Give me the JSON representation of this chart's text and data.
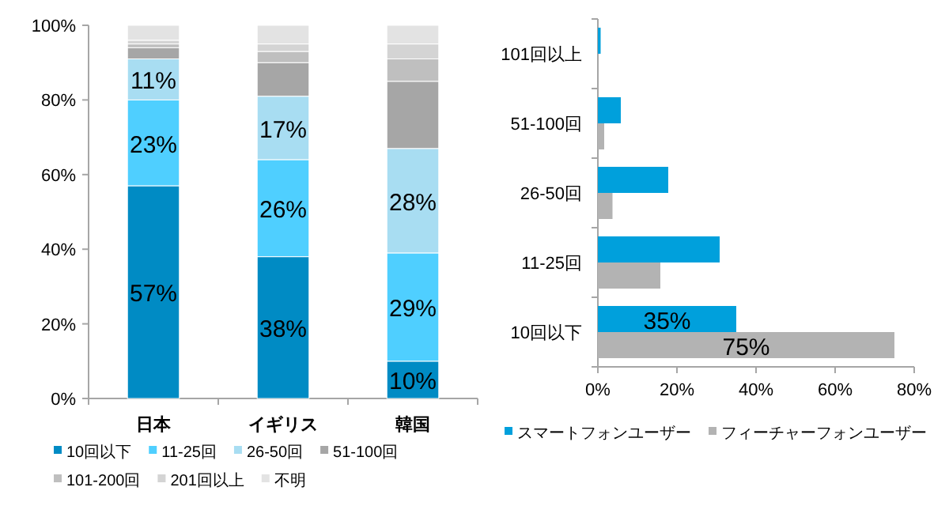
{
  "chart_data": [
    {
      "type": "bar",
      "stacked": true,
      "categories": [
        "日本",
        "イギリス",
        "韓国"
      ],
      "ylim": [
        0,
        100
      ],
      "yticks": [
        {
          "value": 0,
          "label": "0%"
        },
        {
          "value": 20,
          "label": "20%"
        },
        {
          "value": 40,
          "label": "40%"
        },
        {
          "value": 60,
          "label": "60%"
        },
        {
          "value": 80,
          "label": "80%"
        },
        {
          "value": 100,
          "label": "100%"
        }
      ],
      "legend": "bottom",
      "series": [
        {
          "name": "10回以下",
          "color": "#008bc4",
          "values": [
            57,
            38,
            10
          ],
          "value_labels": [
            "57%",
            "38%",
            "10%"
          ]
        },
        {
          "name": "11-25回",
          "color": "#4fcfff",
          "values": [
            23,
            26,
            29
          ],
          "value_labels": [
            "23%",
            "26%",
            "29%"
          ]
        },
        {
          "name": "26-50回",
          "color": "#a8ddf2",
          "values": [
            11,
            17,
            28
          ],
          "value_labels": [
            "11%",
            "17%",
            "28%"
          ]
        },
        {
          "name": "51-100回",
          "color": "#a6a6a6",
          "values": [
            3,
            9,
            18
          ]
        },
        {
          "name": "101-200回",
          "color": "#bfbfbf",
          "values": [
            1,
            3,
            6
          ]
        },
        {
          "name": "201回以上",
          "color": "#d4d4d4",
          "values": [
            1,
            2,
            4
          ]
        },
        {
          "name": "不明",
          "color": "#e3e3e3",
          "values": [
            4,
            5,
            5
          ]
        }
      ]
    },
    {
      "type": "bar",
      "orientation": "horizontal",
      "categories": [
        "101回以上",
        "51-100回",
        "26-50回",
        "11-25回",
        "10回以下"
      ],
      "xlim": [
        0,
        80
      ],
      "xticks": [
        {
          "value": 0,
          "label": "0%"
        },
        {
          "value": 20,
          "label": "20%"
        },
        {
          "value": 40,
          "label": "40%"
        },
        {
          "value": 60,
          "label": "60%"
        },
        {
          "value": 80,
          "label": "80%"
        }
      ],
      "legend": "bottom",
      "series": [
        {
          "name": "スマートフォンユーザー",
          "color": "#00a0dc",
          "values": [
            0.7,
            5.8,
            17.8,
            30.8,
            35
          ],
          "value_labels": [
            null,
            null,
            null,
            null,
            "35%"
          ]
        },
        {
          "name": "フィーチャーフォンユーザー",
          "color": "#b3b3b3",
          "values": [
            0,
            1.6,
            3.7,
            15.8,
            75
          ],
          "value_labels": [
            null,
            null,
            null,
            null,
            "75%"
          ]
        }
      ]
    }
  ]
}
